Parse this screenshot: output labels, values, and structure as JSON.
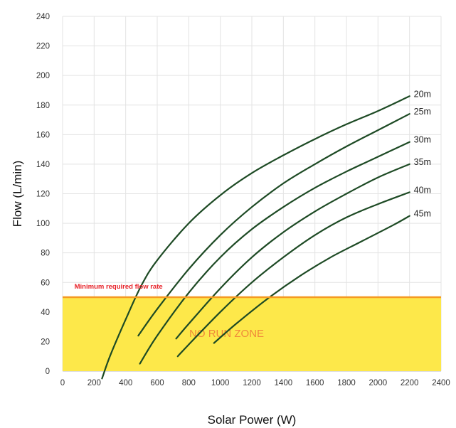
{
  "chart_data": {
    "type": "line",
    "xlabel": "Solar Power (W)",
    "ylabel": "Flow (L/min)",
    "xlim": [
      0,
      2400
    ],
    "ylim": [
      0,
      240
    ],
    "x_ticks": [
      0,
      200,
      400,
      600,
      800,
      1000,
      1200,
      1400,
      1600,
      1800,
      2000,
      2200,
      2400
    ],
    "y_ticks": [
      0,
      20,
      40,
      60,
      80,
      100,
      120,
      140,
      160,
      180,
      200,
      220,
      240
    ],
    "grid": "vertical and horizontal",
    "series_color": "#1d4a24",
    "series": [
      {
        "name": "20m",
        "x": [
          250,
          300,
          400,
          500,
          600,
          800,
          1000,
          1200,
          1400,
          1600,
          1800,
          2000,
          2200
        ],
        "y": [
          -5,
          10,
          35,
          58,
          75,
          100,
          119,
          134,
          146,
          157,
          167,
          176,
          186
        ]
      },
      {
        "name": "25m",
        "x": [
          480,
          600,
          800,
          1000,
          1200,
          1400,
          1600,
          1800,
          2000,
          2200
        ],
        "y": [
          24,
          42,
          69,
          92,
          111,
          127,
          140,
          152,
          163,
          174
        ]
      },
      {
        "name": "30m",
        "x": [
          490,
          600,
          800,
          1000,
          1200,
          1400,
          1600,
          1800,
          2000,
          2200
        ],
        "y": [
          5,
          24,
          53,
          77,
          96,
          111,
          124,
          135,
          145,
          155
        ]
      },
      {
        "name": "35m",
        "x": [
          720,
          800,
          1000,
          1200,
          1400,
          1600,
          1800,
          2000,
          2200
        ],
        "y": [
          22,
          32,
          56,
          77,
          94,
          108,
          120,
          131,
          140
        ]
      },
      {
        "name": "40m",
        "x": [
          730,
          800,
          1000,
          1200,
          1400,
          1600,
          1800,
          2000,
          2200
        ],
        "y": [
          10,
          18,
          40,
          60,
          77,
          92,
          104,
          113,
          121
        ]
      },
      {
        "name": "45m",
        "x": [
          960,
          1100,
          1300,
          1500,
          1700,
          1900,
          2100,
          2200
        ],
        "y": [
          19,
          32,
          49,
          64,
          77,
          88,
          99,
          105
        ]
      }
    ],
    "threshold": {
      "y": 50,
      "label": "Minimum required flow rate",
      "color": "#f59a22"
    },
    "zone": {
      "y_from": 0,
      "y_to": 50,
      "label": "NO RUN ZONE",
      "fill": "#fde84a"
    }
  }
}
